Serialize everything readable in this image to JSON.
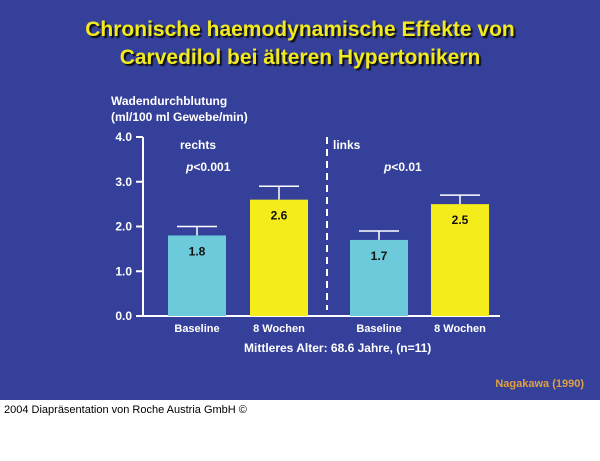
{
  "chart_data": {
    "type": "bar",
    "title": [
      "Chronische haemodynamische Effekte von",
      "Carvedilol bei älteren Hypertonikern"
    ],
    "ylabel": [
      "Wadendurchblutung",
      "(ml/100 ml Gewebe/min)"
    ],
    "ylim": [
      0,
      4
    ],
    "yticks": [
      "0.0",
      "1.0",
      "2.0",
      "3.0",
      "4.0"
    ],
    "groups": [
      {
        "label": "rechts",
        "p_value": "<0.001"
      },
      {
        "label": "links",
        "p_value": "<0.01"
      }
    ],
    "categories": [
      "Baseline",
      "8 Wochen",
      "Baseline",
      "8 Wochen"
    ],
    "values": [
      1.8,
      2.6,
      1.7,
      2.5
    ],
    "value_labels": [
      "1.8",
      "2.6",
      "1.7",
      "2.5"
    ],
    "error_upper": [
      2.0,
      2.9,
      1.9,
      2.7
    ],
    "colors": [
      "#6ccadb",
      "#f5ec1c",
      "#6ccadb",
      "#f5ec1c"
    ],
    "xlabel": "Mittleres Alter: 68.6 Jahre, (n=11)",
    "grid": false
  },
  "source": "Nagakawa (1990)",
  "footer": "2004 Diapräsentation von Roche Austria GmbH ©"
}
